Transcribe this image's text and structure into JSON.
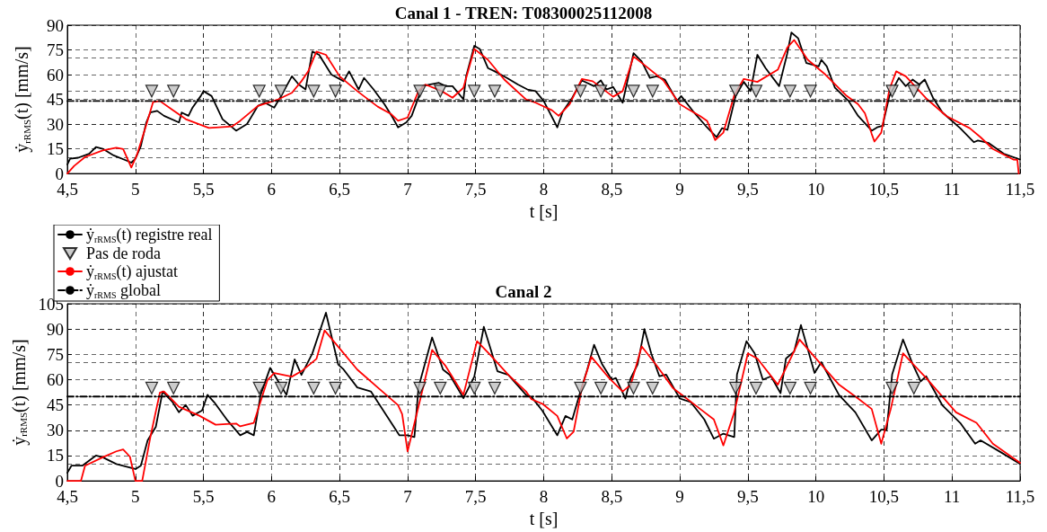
{
  "chart_data": [
    {
      "type": "line",
      "title": "Canal 1 - TREN: T08300025112008",
      "xlabel": "t [s]",
      "ylabel": "ẏ$_{rRMS}$(t) [mm/s]",
      "xlim": [
        4.5,
        11.5
      ],
      "xticks": [
        {
          "value": 4.5,
          "label": "4,5"
        },
        5,
        {
          "value": 5.5,
          "label": "5,5"
        },
        6,
        {
          "value": 6.5,
          "label": "6,5"
        },
        7,
        {
          "value": 7.5,
          "label": "7,5"
        },
        8,
        {
          "value": 8.5,
          "label": "8,5"
        },
        9,
        {
          "value": 9.5,
          "label": "9,5"
        },
        10,
        {
          "value": 10.5,
          "label": "10,5"
        },
        11,
        {
          "value": 11.5,
          "label": "11,5"
        }
      ],
      "ylim": [
        0,
        90
      ],
      "yticks": [
        0,
        15,
        30,
        45,
        60,
        75,
        90
      ],
      "grid": true,
      "legend": false,
      "series": [
        {
          "color": "#000000",
          "marker": "none",
          "line_style": "solid",
          "x": [
            4.5,
            4.52,
            4.58,
            4.66,
            4.71,
            4.76,
            4.84,
            4.94,
            4.97,
            5.0,
            5.04,
            5.08,
            5.11,
            5.16,
            5.21,
            5.32,
            5.34,
            5.39,
            5.42,
            5.48,
            5.5,
            5.56,
            5.64,
            5.74,
            5.82,
            5.9,
            5.95,
            6.02,
            6.07,
            6.15,
            6.2,
            6.25,
            6.3,
            6.35,
            6.44,
            6.53,
            6.57,
            6.64,
            6.68,
            6.75,
            6.83,
            6.89,
            6.93,
            6.99,
            7.03,
            7.11,
            7.16,
            7.23,
            7.28,
            7.33,
            7.41,
            7.43,
            7.49,
            7.53,
            7.59,
            7.64,
            7.73,
            7.81,
            7.88,
            7.94,
            8.0,
            8.1,
            8.14,
            8.21,
            8.28,
            8.37,
            8.42,
            8.46,
            8.51,
            8.58,
            8.66,
            8.72,
            8.78,
            8.83,
            8.89,
            8.98,
            9.01,
            9.1,
            9.2,
            9.27,
            9.31,
            9.35,
            9.41,
            9.47,
            9.52,
            9.57,
            9.63,
            9.73,
            9.79,
            9.82,
            9.87,
            9.93,
            10.02,
            10.04,
            10.08,
            10.14,
            10.24,
            10.31,
            10.41,
            10.45,
            10.49,
            10.54,
            10.61,
            10.66,
            10.71,
            10.76,
            10.8,
            10.86,
            10.93,
            11.06,
            11.16,
            11.19,
            11.27,
            11.38,
            11.5
          ],
          "values": [
            5.5,
            9,
            9.6,
            12,
            16,
            15,
            11,
            7.7,
            6.6,
            9,
            16.6,
            31,
            37,
            38,
            35,
            31,
            37,
            35,
            40,
            47,
            50,
            47,
            33,
            26,
            30,
            41,
            43,
            40,
            47,
            59,
            54,
            51,
            74,
            72,
            60,
            56,
            62,
            51,
            58,
            51,
            42,
            34,
            28,
            31,
            35,
            53,
            54,
            55,
            53,
            53,
            45,
            59,
            77.5,
            75.6,
            64,
            62,
            58,
            54,
            51,
            50,
            44,
            28,
            37.5,
            46,
            56.5,
            53,
            56.5,
            51,
            52.5,
            43,
            73,
            68,
            58,
            59,
            57,
            44,
            47,
            37.5,
            28,
            22,
            27.5,
            26.5,
            47,
            55.6,
            50,
            72,
            64,
            53,
            73,
            85.5,
            82,
            67,
            65,
            69,
            65,
            52,
            44,
            35,
            26,
            28,
            29,
            47,
            58,
            53,
            57,
            54,
            57,
            46,
            37,
            27.5,
            19,
            20,
            18.5,
            12,
            8.5
          ]
        },
        {
          "type": "scatter",
          "color": "#bfbfbf",
          "marker": "triangle",
          "x": [
            5.12,
            5.28,
            5.91,
            6.07,
            6.31,
            6.47,
            7.09,
            7.24,
            7.49,
            7.64,
            8.27,
            8.42,
            8.66,
            8.8,
            9.41,
            9.56,
            9.81,
            9.96,
            10.56,
            10.72
          ],
          "values": [
            50,
            50,
            50,
            50,
            50,
            50,
            50,
            50,
            50,
            50,
            50,
            50,
            50,
            50,
            50,
            50,
            50,
            50,
            50,
            50
          ]
        },
        {
          "color": "#ff0000",
          "marker": "none",
          "line_style": "solid",
          "x": [
            4.5,
            4.55,
            4.63,
            4.76,
            4.86,
            4.91,
            4.97,
            5.01,
            5.08,
            5.13,
            5.18,
            5.27,
            5.37,
            5.54,
            5.71,
            5.77,
            5.9,
            6.05,
            6.15,
            6.22,
            6.27,
            6.33,
            6.4,
            6.5,
            6.63,
            6.78,
            6.88,
            6.93,
            7.0,
            7.08,
            7.13,
            7.25,
            7.33,
            7.41,
            7.49,
            7.59,
            7.71,
            7.87,
            7.94,
            8.06,
            8.11,
            8.19,
            8.28,
            8.36,
            8.51,
            8.58,
            8.66,
            8.73,
            8.88,
            9.0,
            9.15,
            9.2,
            9.26,
            9.32,
            9.4,
            9.47,
            9.57,
            9.72,
            9.79,
            9.84,
            9.94,
            10.07,
            10.22,
            10.31,
            10.36,
            10.41,
            10.43,
            10.48,
            10.54,
            10.59,
            10.66,
            10.81,
            10.96,
            11.13,
            11.21,
            11.3,
            11.45,
            11.48,
            11.49
          ],
          "values": [
            0,
            4.6,
            10,
            14,
            15.7,
            14.8,
            3.7,
            11,
            29.5,
            43.4,
            44,
            38.7,
            33,
            27.7,
            28.6,
            32,
            41,
            45,
            49,
            56,
            62,
            74,
            72,
            59,
            50,
            40.6,
            36,
            32,
            34,
            50,
            54,
            50,
            46,
            52,
            75.6,
            69,
            57,
            45,
            43,
            38.4,
            35,
            42,
            57.4,
            56,
            46.6,
            50,
            71,
            66.5,
            56.5,
            42,
            34.8,
            32,
            20.3,
            24.8,
            47.5,
            57.4,
            55.6,
            63,
            76.4,
            81,
            69,
            60,
            47.5,
            42,
            36.6,
            24,
            19.4,
            24.8,
            51,
            62,
            59,
            45.6,
            34.8,
            27.5,
            22,
            14.9,
            8.5,
            8.3,
            0
          ]
        },
        {
          "color": "#000000",
          "marker": "none",
          "line_style": "dashed",
          "x": [
            4.5,
            11.5
          ],
          "values": [
            44,
            44
          ]
        }
      ]
    },
    {
      "type": "line",
      "title": "Canal 2",
      "xlabel": "t [s]",
      "ylabel": "ẏ$_{rRMS}$(t) [mm/s]",
      "xlim": [
        4.5,
        11.5
      ],
      "xticks": [
        {
          "value": 4.5,
          "label": "4,5"
        },
        5,
        {
          "value": 5.5,
          "label": "5,5"
        },
        6,
        {
          "value": 6.5,
          "label": "6,5"
        },
        7,
        {
          "value": 7.5,
          "label": "7,5"
        },
        8,
        {
          "value": 8.5,
          "label": "8,5"
        },
        9,
        {
          "value": 9.5,
          "label": "9,5"
        },
        10,
        {
          "value": 10.5,
          "label": "10,5"
        },
        11,
        {
          "value": 11.5,
          "label": "11,5"
        }
      ],
      "ylim": [
        0,
        105
      ],
      "yticks": [
        0,
        15,
        30,
        45,
        60,
        75,
        90,
        105
      ],
      "grid": true,
      "legend": "top left",
      "series": [
        {
          "name": "ẏ$_{rRMS}$(t) registre real",
          "color": "#000000",
          "marker": "none",
          "line_style": "solid",
          "x": [
            4.5,
            4.53,
            4.61,
            4.71,
            4.76,
            4.86,
            5.0,
            5.04,
            5.09,
            5.15,
            5.2,
            5.27,
            5.32,
            5.37,
            5.42,
            5.49,
            5.53,
            5.58,
            5.67,
            5.77,
            5.82,
            5.87,
            5.92,
            5.99,
            6.06,
            6.11,
            6.17,
            6.22,
            6.3,
            6.4,
            6.49,
            6.53,
            6.63,
            6.73,
            6.88,
            6.94,
            7.0,
            7.05,
            7.08,
            7.18,
            7.26,
            7.31,
            7.41,
            7.49,
            7.56,
            7.66,
            7.74,
            7.87,
            7.91,
            7.99,
            8.1,
            8.16,
            8.21,
            8.27,
            8.32,
            8.37,
            8.43,
            8.5,
            8.53,
            8.6,
            8.64,
            8.69,
            8.74,
            8.79,
            8.85,
            8.9,
            9.0,
            9.08,
            9.18,
            9.25,
            9.32,
            9.4,
            9.42,
            9.49,
            9.55,
            9.61,
            9.67,
            9.74,
            9.78,
            9.84,
            9.89,
            9.99,
            10.04,
            10.17,
            10.29,
            10.41,
            10.48,
            10.52,
            10.56,
            10.64,
            10.71,
            10.77,
            10.81,
            10.93,
            11.06,
            11.17,
            11.21,
            11.36,
            11.5
          ],
          "values": [
            4.8,
            9,
            9,
            15,
            14,
            10,
            7,
            9,
            24,
            32,
            53,
            47,
            40.7,
            45,
            38.6,
            41.7,
            51,
            46.5,
            36.5,
            27,
            29,
            27,
            51,
            67,
            57.6,
            51,
            72,
            62.8,
            75.5,
            99.7,
            69,
            66,
            55.4,
            53,
            34.4,
            27,
            27,
            26,
            55.4,
            85,
            66,
            62.8,
            49,
            61.8,
            91.3,
            65,
            62.8,
            51,
            49.8,
            41.6,
            27,
            38.5,
            36.4,
            53,
            66,
            80.7,
            69,
            60,
            61,
            48.8,
            61,
            69,
            90,
            75.6,
            62,
            63,
            48.8,
            46.7,
            36.4,
            25,
            28,
            26,
            63,
            82.8,
            75.6,
            60,
            62,
            52,
            72.5,
            76.6,
            92.4,
            64,
            70.4,
            50.9,
            40.6,
            24,
            30.3,
            30.3,
            63,
            83.8,
            69.4,
            59,
            62,
            44.7,
            34.4,
            22,
            24,
            16.9,
            10
          ]
        },
        {
          "type": "scatter",
          "name": "Pas de roda",
          "color": "#bfbfbf",
          "marker": "triangle",
          "x": [
            5.12,
            5.28,
            5.91,
            6.07,
            6.31,
            6.47,
            7.09,
            7.24,
            7.49,
            7.64,
            8.27,
            8.42,
            8.66,
            8.8,
            9.41,
            9.56,
            9.81,
            9.96,
            10.56,
            10.72
          ],
          "values": [
            55,
            55,
            55,
            55,
            55,
            55,
            55,
            55,
            55,
            55,
            55,
            55,
            55,
            55,
            55,
            55,
            55,
            55,
            55,
            55
          ]
        },
        {
          "name": "ẏ$_{rRMS}$(t) ajustat",
          "color": "#ff0000",
          "marker": "none",
          "line_style": "solid",
          "x": [
            4.5,
            4.6,
            4.63,
            4.76,
            4.86,
            4.91,
            4.96,
            5.0,
            5.05,
            5.11,
            5.18,
            5.21,
            5.32,
            5.47,
            5.59,
            5.74,
            5.77,
            5.87,
            5.97,
            6.02,
            6.15,
            6.22,
            6.33,
            6.39,
            6.5,
            6.63,
            6.78,
            6.93,
            6.96,
            7.0,
            7.07,
            7.18,
            7.28,
            7.41,
            7.51,
            7.61,
            7.74,
            7.87,
            7.91,
            7.99,
            8.1,
            8.17,
            8.22,
            8.28,
            8.35,
            8.48,
            8.58,
            8.64,
            8.72,
            8.83,
            8.95,
            9.15,
            9.25,
            9.32,
            9.4,
            9.5,
            9.57,
            9.72,
            9.82,
            9.88,
            9.99,
            10.17,
            10.31,
            10.41,
            10.48,
            10.55,
            10.64,
            10.81,
            11.03,
            11.18,
            11.3,
            11.5
          ],
          "values": [
            0,
            0,
            9,
            14,
            17.5,
            18.6,
            14.3,
            0,
            0,
            26,
            52.3,
            53,
            43.9,
            38.6,
            33.3,
            34,
            32.3,
            34.4,
            59.7,
            63.9,
            61.8,
            65,
            72.3,
            89.2,
            78.6,
            66,
            55.4,
            44.9,
            39.6,
            17.5,
            40.7,
            77.6,
            68,
            51,
            82.8,
            74.4,
            62.8,
            53,
            48.4,
            45.7,
            38.5,
            25.1,
            29.2,
            55,
            73.5,
            61,
            53,
            57,
            79.7,
            68.4,
            55,
            42.6,
            36.4,
            21,
            40.6,
            75.6,
            72.5,
            57,
            73.5,
            83.8,
            73.5,
            57,
            48.8,
            42.6,
            22,
            42.6,
            75.6,
            61,
            40.6,
            34.4,
            22,
            10.7
          ]
        },
        {
          "name": "ẏ$_{rRMS}$ global",
          "color": "#000000",
          "marker": "none",
          "line_style": "dashed",
          "x": [
            4.5,
            11.5
          ],
          "values": [
            50,
            50
          ]
        }
      ]
    }
  ]
}
